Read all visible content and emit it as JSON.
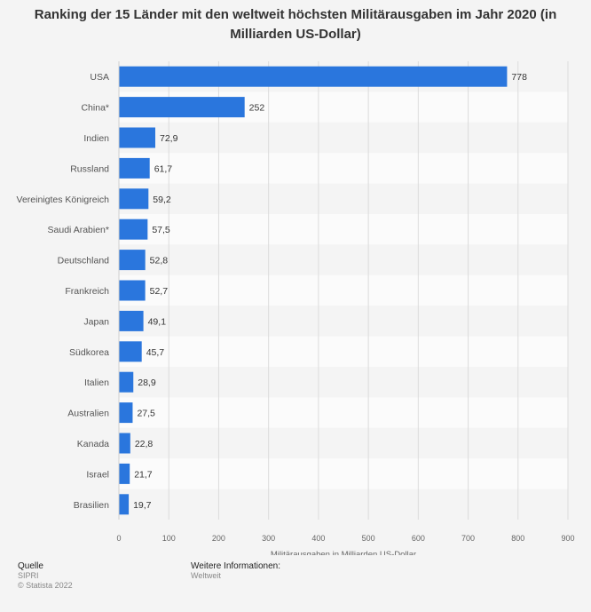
{
  "chart_data": {
    "type": "bar",
    "orientation": "horizontal",
    "title": "Ranking der 15 Länder mit den weltweit höchsten Militärausgaben im Jahr 2020 (in Milliarden US-Dollar)",
    "xlabel": "Militärausgaben in Milliarden US-Dollar",
    "ylabel": "",
    "xlim": [
      0,
      900
    ],
    "xticks": [
      0,
      100,
      200,
      300,
      400,
      500,
      600,
      700,
      800,
      900
    ],
    "categories": [
      "USA",
      "China*",
      "Indien",
      "Russland",
      "Vereinigtes Königreich",
      "Saudi Arabien*",
      "Deutschland",
      "Frankreich",
      "Japan",
      "Südkorea",
      "Italien",
      "Australien",
      "Kanada",
      "Israel",
      "Brasilien"
    ],
    "values": [
      778,
      252,
      72.9,
      61.7,
      59.2,
      57.5,
      52.8,
      52.7,
      49.1,
      45.7,
      28.9,
      27.5,
      22.8,
      21.7,
      19.7
    ],
    "value_labels": [
      "778",
      "252",
      "72,9",
      "61,7",
      "59,2",
      "57,5",
      "52,8",
      "52,7",
      "49,1",
      "45,7",
      "28,9",
      "27,5",
      "22,8",
      "21,7",
      "19,7"
    ],
    "bar_color": "#2a76dd",
    "grid": true,
    "legend": "none"
  },
  "footer": {
    "source_heading": "Quelle",
    "source": "SIPRI",
    "copyright": "© Statista 2022",
    "info_heading": "Weitere Informationen:",
    "info": "Weltweit"
  }
}
